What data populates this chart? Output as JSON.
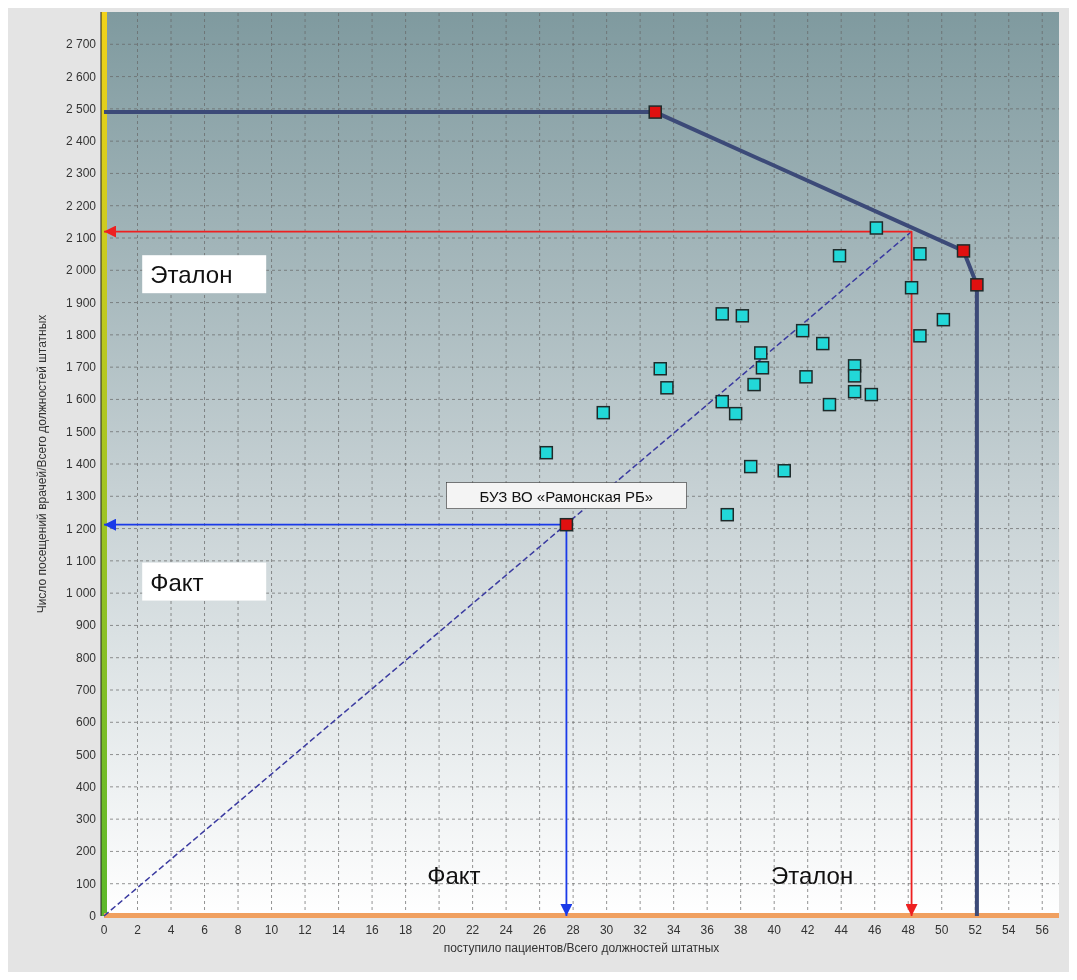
{
  "chart_data": {
    "type": "scatter",
    "xlabel": "поступило пациентов/Всего должностей штатных",
    "ylabel": "Число посещений врачей/Всего должностей штатных",
    "xlim": [
      0,
      57
    ],
    "ylim": [
      0,
      2800
    ],
    "xticks": [
      0,
      2,
      4,
      6,
      8,
      10,
      12,
      14,
      16,
      18,
      20,
      22,
      24,
      26,
      28,
      30,
      32,
      34,
      36,
      38,
      40,
      42,
      44,
      46,
      48,
      50,
      52,
      54,
      56
    ],
    "yticks": [
      0,
      100,
      200,
      300,
      400,
      500,
      600,
      700,
      800,
      900,
      {
        "value": 1000,
        "label": "1 000"
      },
      {
        "value": 1100,
        "label": "1 100"
      },
      {
        "value": 1200,
        "label": "1 200"
      },
      {
        "value": 1300,
        "label": "1 300"
      },
      {
        "value": 1400,
        "label": "1 400"
      },
      {
        "value": 1500,
        "label": "1 500"
      },
      {
        "value": 1600,
        "label": "1 600"
      },
      {
        "value": 1700,
        "label": "1 700"
      },
      {
        "value": 1800,
        "label": "1 800"
      },
      {
        "value": 1900,
        "label": "1 900"
      },
      {
        "value": 2000,
        "label": "2 000"
      },
      {
        "value": 2100,
        "label": "2 100"
      },
      {
        "value": 2200,
        "label": "2 200"
      },
      {
        "value": 2300,
        "label": "2 300"
      },
      {
        "value": 2400,
        "label": "2 400"
      },
      {
        "value": 2500,
        "label": "2 500"
      },
      {
        "value": 2600,
        "label": "2 600"
      },
      {
        "value": 2700,
        "label": "2 700"
      }
    ],
    "grid": true,
    "marker": "square",
    "series": [
      {
        "type": "line",
        "color": "#3c4a78",
        "line_style": "solid",
        "marker": "none",
        "x": [
          0,
          32.9,
          51.3,
          52.1,
          52.1
        ],
        "values": [
          2490,
          2490,
          2060,
          1955,
          0
        ]
      },
      {
        "type": "line",
        "color": "#3a3aa0",
        "line_style": "dashed",
        "marker": "none",
        "x": [
          0,
          48.2
        ],
        "values": [
          0,
          2120
        ]
      },
      {
        "type": "line",
        "color": "#ee2020",
        "line_style": "solid",
        "marker": "none",
        "x": [
          0,
          48.2,
          48.2
        ],
        "values": [
          2120,
          2120,
          0
        ]
      },
      {
        "type": "line",
        "color": "#1a3ae8",
        "line_style": "solid",
        "marker": "none",
        "x": [
          0,
          27.6,
          27.6
        ],
        "values": [
          1212,
          1212,
          0
        ]
      },
      {
        "color": "#22d8d8",
        "x": [
          26.4,
          29.8,
          33.2,
          33.6,
          36.9,
          38.1,
          39.2,
          39.3,
          38.8,
          36.9,
          37.7,
          41.7,
          42.9,
          41.9,
          43.3,
          44.8,
          44.8,
          44.8,
          45.8,
          46.1,
          43.9,
          48.7,
          48.2,
          48.7,
          50.1,
          38.6,
          40.6,
          37.2
        ],
        "values": [
          1435,
          1559,
          1695,
          1636,
          1865,
          1859,
          1744,
          1698,
          1646,
          1593,
          1556,
          1813,
          1773,
          1670,
          1584,
          1704,
          1673,
          1624,
          1615,
          2131,
          2045,
          2051,
          1946,
          1797,
          1847,
          1392,
          1379,
          1243
        ]
      },
      {
        "type": "scatter",
        "color": "#e01010",
        "x": [
          32.9,
          51.3,
          52.1,
          27.6
        ],
        "values": [
          2490,
          2060,
          1955,
          1212
        ]
      }
    ],
    "annotations": [
      "Эталон",
      "Факт",
      "Факт",
      "Эталон",
      {
        "text": "БУЗ ВО «Рамонская РБ»",
        "x": 27.6,
        "y": 1212
      }
    ]
  }
}
